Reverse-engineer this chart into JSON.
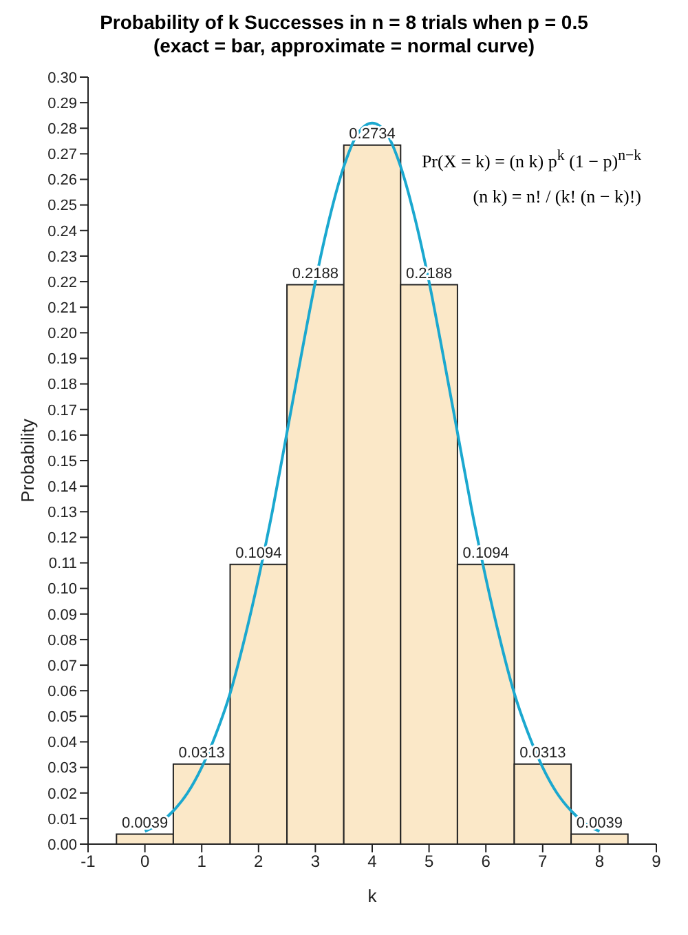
{
  "chart_data": {
    "type": "histogram",
    "title": "Probability of k Successes in n = 8 trials when p = 0.5",
    "subtitle": "(exact = bar, approximate = normal curve)",
    "xlabel": "k",
    "ylabel": "Probability",
    "bins": [
      -0.5,
      0.5,
      1.5,
      2.5,
      3.5,
      4.5,
      5.5,
      6.5,
      7.5,
      8.5
    ],
    "values": [
      0.0039,
      0.0313,
      0.1094,
      0.2188,
      0.2734,
      0.2188,
      0.1094,
      0.0313,
      0.0039
    ],
    "color": "#fbe8c8",
    "value_labels": [
      "0.0039",
      "0.0313",
      "0.1094",
      "0.2188",
      "0.2734",
      "0.2188",
      "0.1094",
      "0.0313",
      "0.0039"
    ],
    "series": [
      {
        "type": "line",
        "color": "#1ba8cf",
        "x": [
          0,
          0.25,
          0.5,
          0.75,
          1,
          1.25,
          1.5,
          1.75,
          2,
          2.25,
          2.5,
          2.75,
          3,
          3.25,
          3.5,
          3.75,
          4,
          4.25,
          4.5,
          4.75,
          5,
          5.25,
          5.5,
          5.75,
          6,
          6.25,
          6.5,
          6.75,
          7,
          7.25,
          7.5,
          7.75,
          8
        ],
        "values": [
          0.005,
          0.008,
          0.013,
          0.02,
          0.03,
          0.043,
          0.059,
          0.08,
          0.104,
          0.131,
          0.161,
          0.191,
          0.22,
          0.245,
          0.265,
          0.278,
          0.282,
          0.278,
          0.265,
          0.245,
          0.22,
          0.191,
          0.161,
          0.131,
          0.104,
          0.08,
          0.059,
          0.043,
          0.03,
          0.02,
          0.013,
          0.008,
          0.005
        ]
      }
    ],
    "xlim": [
      -1,
      9
    ],
    "xticks": [
      -1,
      0,
      1,
      2,
      3,
      4,
      5,
      6,
      7,
      8,
      9
    ],
    "ylim": [
      0,
      0.3
    ],
    "yticks": [
      {
        "value": 0,
        "label": "0.00"
      },
      {
        "value": 0.01,
        "label": "0.01"
      },
      {
        "value": 0.02,
        "label": "0.02"
      },
      {
        "value": 0.03,
        "label": "0.03"
      },
      {
        "value": 0.04,
        "label": "0.04"
      },
      {
        "value": 0.05,
        "label": "0.05"
      },
      {
        "value": 0.06,
        "label": "0.06"
      },
      {
        "value": 0.07,
        "label": "0.07"
      },
      {
        "value": 0.08,
        "label": "0.08"
      },
      {
        "value": 0.09,
        "label": "0.09"
      },
      {
        "value": 0.1,
        "label": "0.10"
      },
      {
        "value": 0.11,
        "label": "0.11"
      },
      {
        "value": 0.12,
        "label": "0.12"
      },
      {
        "value": 0.13,
        "label": "0.13"
      },
      {
        "value": 0.14,
        "label": "0.14"
      },
      {
        "value": 0.15,
        "label": "0.15"
      },
      {
        "value": 0.16,
        "label": "0.16"
      },
      {
        "value": 0.17,
        "label": "0.17"
      },
      {
        "value": 0.18,
        "label": "0.18"
      },
      {
        "value": 0.19,
        "label": "0.19"
      },
      {
        "value": 0.2,
        "label": "0.20"
      },
      {
        "value": 0.21,
        "label": "0.21"
      },
      {
        "value": 0.22,
        "label": "0.22"
      },
      {
        "value": 0.23,
        "label": "0.23"
      },
      {
        "value": 0.24,
        "label": "0.24"
      },
      {
        "value": 0.25,
        "label": "0.25"
      },
      {
        "value": 0.26,
        "label": "0.26"
      },
      {
        "value": 0.27,
        "label": "0.27"
      },
      {
        "value": 0.28,
        "label": "0.28"
      },
      {
        "value": 0.29,
        "label": "0.29"
      },
      {
        "value": 0.3,
        "label": "0.30"
      }
    ],
    "annotations": [
      "Pr(X = k) = (n k) p$^{k}$ (1 − p)$^{n−k}$",
      "(n k) = n! / (k! (n − k)!)"
    ],
    "legend": false,
    "grid": false
  }
}
